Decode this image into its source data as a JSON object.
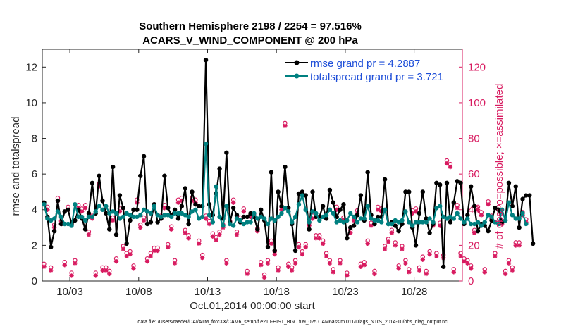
{
  "chart_data": {
    "type": "line",
    "title_line1": "Southern Hemisphere 2198 / 2254 = 97.516%",
    "title_line2": "ACARS_V_WIND_COMPONENT @ 200 hPa",
    "xlabel": "Oct.01,2014 00:00:00 start",
    "ylabel_left": "rmse and totalspread",
    "ylabel_right": "# of obs: o=possible; ×=assimilated",
    "footer": "data file: /Users/raeder/DAI/ATM_forcXX/CAM6_setup/f.e21.FHIST_BGC.f09_025.CAM6assim.011/Diags_NTrS_2014-10/obs_diag_output.nc",
    "xlim": [
      1,
      31.5
    ],
    "ylim_left": [
      0,
      13
    ],
    "ylim_right": [
      0,
      130
    ],
    "x_ticks": [
      3,
      8,
      13,
      18,
      23,
      28
    ],
    "x_tick_labels": [
      "10/03",
      "10/08",
      "10/13",
      "10/18",
      "10/23",
      "10/28"
    ],
    "y_ticks_left": [
      0,
      2,
      4,
      6,
      8,
      10,
      12
    ],
    "y_ticks_right": [
      0,
      20,
      40,
      60,
      80,
      100,
      120
    ],
    "x_start": 1.125,
    "x_step": 0.25,
    "legend": [
      {
        "label": "rmse grand pr = 4.2887",
        "color": "#000000"
      },
      {
        "label": "totalspread grand pr = 3.721",
        "color": "#008080"
      }
    ],
    "colors": {
      "rmse": "#000000",
      "spread": "#008080",
      "obs": "#D81B60",
      "legend_text": "#1F4FD8",
      "axis": "#262626"
    },
    "series": [
      {
        "name": "rmse",
        "axis": "left",
        "values": [
          4.4,
          3.6,
          1.9,
          2.8,
          4.5,
          3.2,
          3.9,
          4.0,
          3.2,
          3.4,
          4.0,
          3.5,
          2.9,
          3.8,
          5.5,
          3.8,
          5.9,
          4.5,
          3.8,
          2.9,
          6.4,
          2.6,
          4.8,
          4.1,
          2.1,
          3.4,
          4.0,
          4.0,
          5.9,
          7.0,
          3.2,
          3.3,
          4.3,
          3.3,
          3.5,
          5.9,
          4.1,
          3.7,
          4.0,
          3.5,
          4.2,
          5.2,
          3.2,
          5.0,
          4.3,
          4.2,
          4.2,
          12.4,
          4.3,
          3.7,
          4.9,
          6.3,
          3.5,
          7.2,
          3.3,
          4.1,
          3.7,
          3.3,
          3.6,
          3.6,
          3.8,
          3.6,
          2.9,
          4.0,
          3.4,
          1.9,
          6.1,
          1.7,
          5.0,
          4.2,
          6.4,
          4.1,
          3.2,
          1.7,
          4.9,
          5.0,
          4.8,
          2.9,
          5.0,
          3.6,
          3.6,
          4.2,
          3.5,
          5.1,
          4.4,
          3.6,
          4.0,
          4.3,
          2.4,
          3.0,
          3.1,
          3.7,
          4.8,
          3.4,
          6.1,
          3.7,
          3.2,
          3.6,
          3.6,
          5.7,
          3.2,
          3.3,
          3.1,
          2.8,
          3.2,
          5.0,
          5.0,
          3.0,
          2.0,
          3.8,
          5.0,
          3.5,
          2.7,
          3.2,
          5.5,
          5.4,
          0.8,
          5.5,
          3.3,
          4.4,
          5.6,
          5.5,
          3.2,
          3.7,
          5.3,
          4.2,
          2.8,
          3.2,
          3.1,
          2.8,
          3.4,
          4.1,
          4.0,
          3.3,
          3.4,
          5.5,
          4.2,
          5.3,
          3.0,
          4.6,
          4.8,
          4.8,
          2.1
        ]
      },
      {
        "name": "totalspread",
        "axis": "left",
        "values": [
          4.3,
          3.5,
          3.4,
          3.5,
          3.9,
          3.6,
          3.2,
          3.2,
          3.1,
          4.3,
          3.6,
          3.6,
          3.4,
          3.6,
          3.6,
          3.9,
          4.2,
          4.0,
          4.2,
          3.8,
          3.9,
          3.8,
          3.5,
          3.6,
          3.8,
          3.7,
          3.6,
          3.6,
          3.7,
          4.0,
          3.9,
          3.8,
          4.2,
          3.7,
          3.6,
          3.7,
          3.7,
          3.6,
          3.8,
          3.8,
          3.8,
          3.7,
          3.6,
          3.9,
          4.0,
          3.5,
          3.6,
          7.7,
          3.7,
          3.3,
          5.3,
          3.6,
          3.1,
          4.2,
          3.2,
          3.1,
          3.5,
          3.4,
          3.2,
          3.3,
          3.3,
          3.8,
          3.5,
          3.6,
          3.5,
          3.2,
          3.5,
          3.4,
          3.6,
          3.8,
          4.1,
          3.9,
          3.3,
          3.6,
          4.3,
          4.8,
          4.0,
          3.3,
          3.9,
          3.8,
          3.4,
          3.6,
          3.7,
          4.0,
          3.8,
          3.3,
          3.4,
          3.3,
          3.4,
          3.8,
          3.6,
          3.3,
          3.5,
          3.5,
          4.2,
          3.5,
          3.4,
          3.4,
          3.3,
          4.0,
          3.2,
          3.2,
          3.4,
          3.3,
          3.4,
          3.9,
          3.3,
          3.1,
          3.3,
          3.3,
          3.3,
          3.3,
          3.5,
          3.3,
          4.1,
          4.2,
          3.6,
          3.5,
          3.6,
          3.5,
          3.8,
          3.5,
          3.3,
          3.5,
          3.2,
          3.2,
          3.3,
          3.1,
          3.3,
          3.7,
          3.6,
          3.3,
          3.2,
          4.0,
          3.4,
          4.4,
          3.7,
          3.5,
          3.5,
          3.8,
          3.2
        ]
      },
      {
        "name": "obs_possible",
        "axis": "right",
        "values": [
          8,
          40,
          6,
          30,
          45,
          32,
          9,
          40,
          3,
          10,
          41,
          39,
          41,
          26,
          35,
          3,
          53,
          6,
          6,
          4,
          34,
          11,
          39,
          18,
          14,
          15,
          7,
          44,
          30,
          34,
          11,
          14,
          17,
          17,
          35,
          41,
          19,
          29,
          10,
          44,
          45,
          27,
          24,
          45,
          44,
          21,
          13,
          35,
          32,
          25,
          23,
          26,
          30,
          10,
          32,
          44,
          26,
          34,
          39,
          4,
          36,
          36,
          28,
          9,
          2,
          10,
          21,
          15,
          6,
          40,
          87,
          8,
          6,
          10,
          19,
          15,
          19,
          31,
          35,
          24,
          24,
          21,
          14,
          10,
          5,
          40,
          10,
          34,
          3,
          27,
          34,
          38,
          8,
          9,
          21,
          31,
          4,
          40,
          39,
          18,
          22,
          27,
          20,
          7,
          18,
          10,
          5,
          38,
          39,
          6,
          12,
          4,
          15,
          31,
          14,
          31,
          13,
          66,
          64,
          5,
          41,
          14,
          11,
          10,
          7,
          27,
          40,
          37,
          5,
          43,
          35,
          14,
          40,
          32,
          4,
          10,
          6,
          20,
          20,
          37,
          33
        ]
      },
      {
        "name": "obs_assimilated",
        "axis": "right",
        "values": [
          8,
          40,
          6,
          30,
          45,
          32,
          9,
          40,
          3,
          10,
          41,
          39,
          41,
          26,
          35,
          3,
          53,
          6,
          6,
          4,
          34,
          11,
          39,
          18,
          14,
          15,
          7,
          44,
          30,
          34,
          11,
          14,
          17,
          17,
          35,
          41,
          19,
          29,
          10,
          44,
          45,
          27,
          24,
          45,
          44,
          21,
          13,
          35,
          32,
          25,
          23,
          26,
          30,
          10,
          32,
          44,
          26,
          34,
          39,
          4,
          36,
          36,
          28,
          9,
          2,
          10,
          21,
          15,
          6,
          40,
          87,
          8,
          6,
          10,
          19,
          15,
          19,
          31,
          35,
          24,
          24,
          21,
          14,
          10,
          5,
          40,
          10,
          34,
          3,
          27,
          34,
          38,
          8,
          9,
          21,
          31,
          4,
          40,
          39,
          18,
          22,
          27,
          20,
          7,
          18,
          10,
          5,
          38,
          39,
          6,
          12,
          4,
          15,
          31,
          14,
          31,
          13,
          66,
          64,
          5,
          41,
          14,
          11,
          10,
          7,
          27,
          40,
          37,
          5,
          43,
          35,
          14,
          40,
          32,
          4,
          10,
          6,
          20,
          20,
          37,
          33
        ]
      }
    ]
  }
}
